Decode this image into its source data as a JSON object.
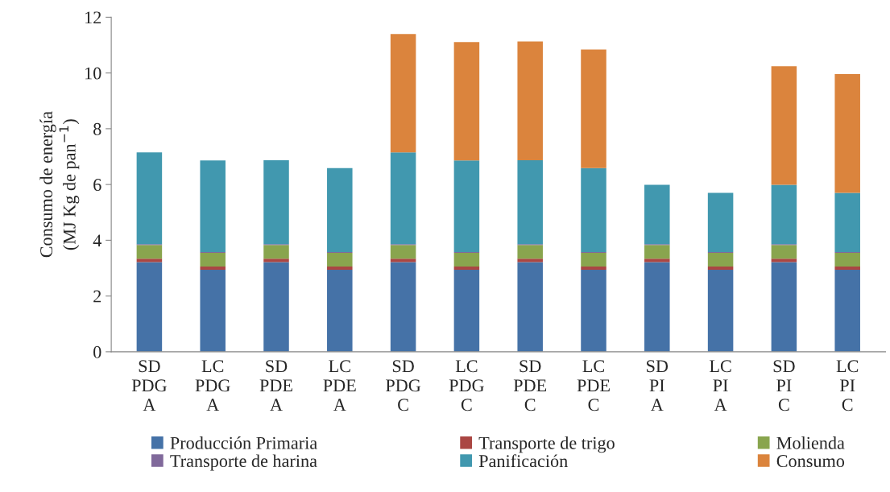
{
  "chart_data": {
    "type": "bar",
    "stacked": true,
    "ylabel": "Consumo de energía\n(MJ Kg de pan$^{−1}$)",
    "categories": [
      "SD\nPDG\nA",
      "LC\nPDG\nA",
      "SD\nPDE\nA",
      "LC\nPDE\nA",
      "SD\nPDG\nC",
      "LC\nPDG\nC",
      "SD\nPDE\nC",
      "LC\nPDE\nC",
      "SD\nPI\nA",
      "LC\nPI\nA",
      "SD\nPI\nC",
      "LC\nPI\nC"
    ],
    "series": [
      {
        "name": "Producción Primaria",
        "color": "#4572a7",
        "values": [
          3.22,
          2.94,
          3.22,
          2.94,
          3.22,
          2.94,
          3.22,
          2.94,
          3.22,
          2.94,
          3.22,
          2.94
        ]
      },
      {
        "name": "Transporte de trigo",
        "color": "#aa4643",
        "values": [
          0.12,
          0.12,
          0.12,
          0.12,
          0.12,
          0.12,
          0.12,
          0.12,
          0.12,
          0.12,
          0.12,
          0.12
        ]
      },
      {
        "name": "Molienda",
        "color": "#89a54e",
        "values": [
          0.49,
          0.49,
          0.49,
          0.49,
          0.49,
          0.49,
          0.49,
          0.49,
          0.49,
          0.49,
          0.49,
          0.49
        ]
      },
      {
        "name": "Transporte de harina",
        "color": "#80699b",
        "values": [
          0.03,
          0.03,
          0.03,
          0.03,
          0.03,
          0.03,
          0.03,
          0.03,
          0.03,
          0.03,
          0.03,
          0.03
        ]
      },
      {
        "name": "Panificación",
        "color": "#4198af",
        "values": [
          3.29,
          3.28,
          3.01,
          3.01,
          3.29,
          3.28,
          3.01,
          3.01,
          2.13,
          2.12,
          2.13,
          2.12
        ]
      },
      {
        "name": "Consumo",
        "color": "#db843d",
        "values": [
          null,
          null,
          null,
          null,
          4.25,
          4.25,
          4.26,
          4.25,
          null,
          null,
          4.25,
          4.26
        ]
      }
    ],
    "ylim": [
      0,
      12
    ],
    "yticks": [
      0,
      2,
      4,
      6,
      8,
      10,
      12
    ],
    "grid": false,
    "legend": "bottom"
  }
}
